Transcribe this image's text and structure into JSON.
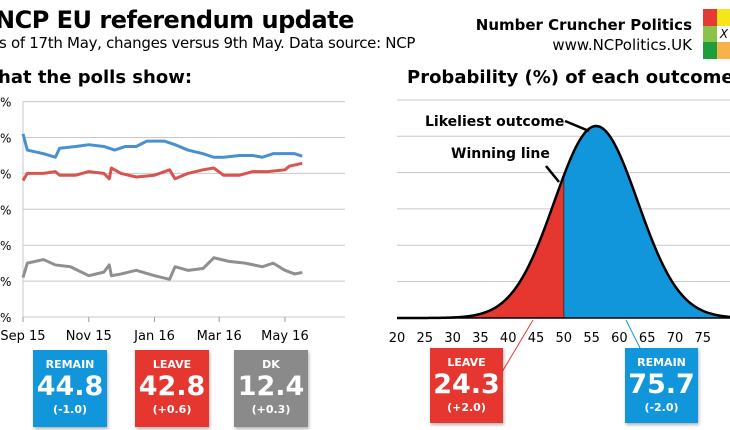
{
  "header": {
    "title": "NCP EU referendum update",
    "subtitle": "s of 17th May, changes versus 9th May. Data source: NCP"
  },
  "logo": {
    "name": "Number Cruncher Politics",
    "url": "www.NCPolitics.UK",
    "mark": "X",
    "colors": [
      "#e53935",
      "#f5e51b",
      "#8bc34a",
      "#ffffff",
      "#1e9e3a",
      "#f7b24a"
    ]
  },
  "colors": {
    "remain": "#1296db",
    "leave": "#e5362f",
    "dk": "#8a8a8a",
    "remain_line": "#4a8fcf",
    "leave_line": "#d9534f",
    "dk_line": "#8f8f8f"
  },
  "chart_data": [
    {
      "type": "line",
      "title": "hat the polls show:",
      "ylim": [
        0,
        60
      ],
      "y_tick_label": "%",
      "grid": true,
      "x_ticks": [
        "Sep 15",
        "Nov 15",
        "Jan 16",
        "Mar 16",
        "May 16"
      ],
      "x_tick_dates": [
        "2015-09-01",
        "2015-11-01",
        "2016-01-01",
        "2016-03-01",
        "2016-05-01"
      ],
      "series": [
        {
          "key": "remain",
          "points": [
            [
              "2015-09-01",
              51
            ],
            [
              "2015-09-05",
              46.5
            ],
            [
              "2015-09-20",
              45.5
            ],
            [
              "2015-10-01",
              44.5
            ],
            [
              "2015-10-05",
              47
            ],
            [
              "2015-10-20",
              47.5
            ],
            [
              "2015-11-01",
              48
            ],
            [
              "2015-11-15",
              47.5
            ],
            [
              "2015-11-25",
              46.5
            ],
            [
              "2015-12-05",
              47.5
            ],
            [
              "2015-12-15",
              47.5
            ],
            [
              "2015-12-25",
              49
            ],
            [
              "2016-01-10",
              49
            ],
            [
              "2016-01-20",
              48
            ],
            [
              "2016-02-01",
              46.5
            ],
            [
              "2016-02-15",
              45.5
            ],
            [
              "2016-02-25",
              44.5
            ],
            [
              "2016-03-05",
              44.5
            ],
            [
              "2016-03-20",
              45
            ],
            [
              "2016-04-01",
              45
            ],
            [
              "2016-04-10",
              44.5
            ],
            [
              "2016-04-20",
              45.5
            ],
            [
              "2016-05-01",
              45.5
            ],
            [
              "2016-05-10",
              45.5
            ],
            [
              "2016-05-17",
              44.8
            ]
          ]
        },
        {
          "key": "leave",
          "points": [
            [
              "2015-09-01",
              38
            ],
            [
              "2015-09-05",
              40
            ],
            [
              "2015-09-20",
              40
            ],
            [
              "2015-10-01",
              40.5
            ],
            [
              "2015-10-05",
              39.5
            ],
            [
              "2015-10-20",
              39.5
            ],
            [
              "2015-11-01",
              40.5
            ],
            [
              "2015-11-15",
              40
            ],
            [
              "2015-11-20",
              38.5
            ],
            [
              "2015-11-22",
              41.5
            ],
            [
              "2015-12-01",
              40
            ],
            [
              "2015-12-15",
              39
            ],
            [
              "2016-01-01",
              39.5
            ],
            [
              "2016-01-15",
              41
            ],
            [
              "2016-01-20",
              38.5
            ],
            [
              "2016-02-01",
              40
            ],
            [
              "2016-02-15",
              41
            ],
            [
              "2016-02-25",
              41.5
            ],
            [
              "2016-03-05",
              39.5
            ],
            [
              "2016-03-20",
              39.5
            ],
            [
              "2016-04-01",
              40.5
            ],
            [
              "2016-04-15",
              40.5
            ],
            [
              "2016-05-01",
              41
            ],
            [
              "2016-05-05",
              42
            ],
            [
              "2016-05-17",
              42.8
            ]
          ]
        },
        {
          "key": "dk",
          "points": [
            [
              "2015-09-01",
              11
            ],
            [
              "2015-09-05",
              15
            ],
            [
              "2015-09-20",
              16
            ],
            [
              "2015-10-01",
              14.5
            ],
            [
              "2015-10-15",
              14
            ],
            [
              "2015-11-01",
              11.5
            ],
            [
              "2015-11-15",
              12.5
            ],
            [
              "2015-11-20",
              14.5
            ],
            [
              "2015-11-22",
              11.5
            ],
            [
              "2015-12-01",
              12
            ],
            [
              "2015-12-15",
              13
            ],
            [
              "2016-01-01",
              11.5
            ],
            [
              "2016-01-15",
              10.5
            ],
            [
              "2016-01-20",
              14
            ],
            [
              "2016-02-01",
              13
            ],
            [
              "2016-02-15",
              13.5
            ],
            [
              "2016-02-25",
              16.5
            ],
            [
              "2016-03-10",
              15.5
            ],
            [
              "2016-03-25",
              15
            ],
            [
              "2016-04-10",
              14
            ],
            [
              "2016-04-20",
              15
            ],
            [
              "2016-05-01",
              13
            ],
            [
              "2016-05-10",
              12
            ],
            [
              "2016-05-17",
              12.4
            ]
          ]
        }
      ]
    },
    {
      "type": "area",
      "title": "Probability (%) of each outcome:",
      "x_ticks": [
        20,
        25,
        30,
        35,
        40,
        45,
        50,
        55,
        60,
        65,
        70,
        75
      ],
      "xlim": [
        20,
        80
      ],
      "distribution": {
        "mean": 55.8,
        "sd": 7.5
      },
      "winning_line": 50,
      "annotations": [
        "Likeliest outcome",
        "Winning line"
      ]
    }
  ],
  "poll_boxes": [
    {
      "key": "remain",
      "label": "REMAIN",
      "value": "44.8",
      "change": "(-1.0)"
    },
    {
      "key": "leave",
      "label": "LEAVE",
      "value": "42.8",
      "change": "(+0.6)"
    },
    {
      "key": "dk",
      "label": "DK",
      "value": "12.4",
      "change": "(+0.3)"
    }
  ],
  "outcome_boxes": [
    {
      "key": "leave",
      "label": "LEAVE",
      "value": "24.3",
      "change": "(+2.0)"
    },
    {
      "key": "remain",
      "label": "REMAIN",
      "value": "75.7",
      "change": "(-2.0)"
    }
  ]
}
